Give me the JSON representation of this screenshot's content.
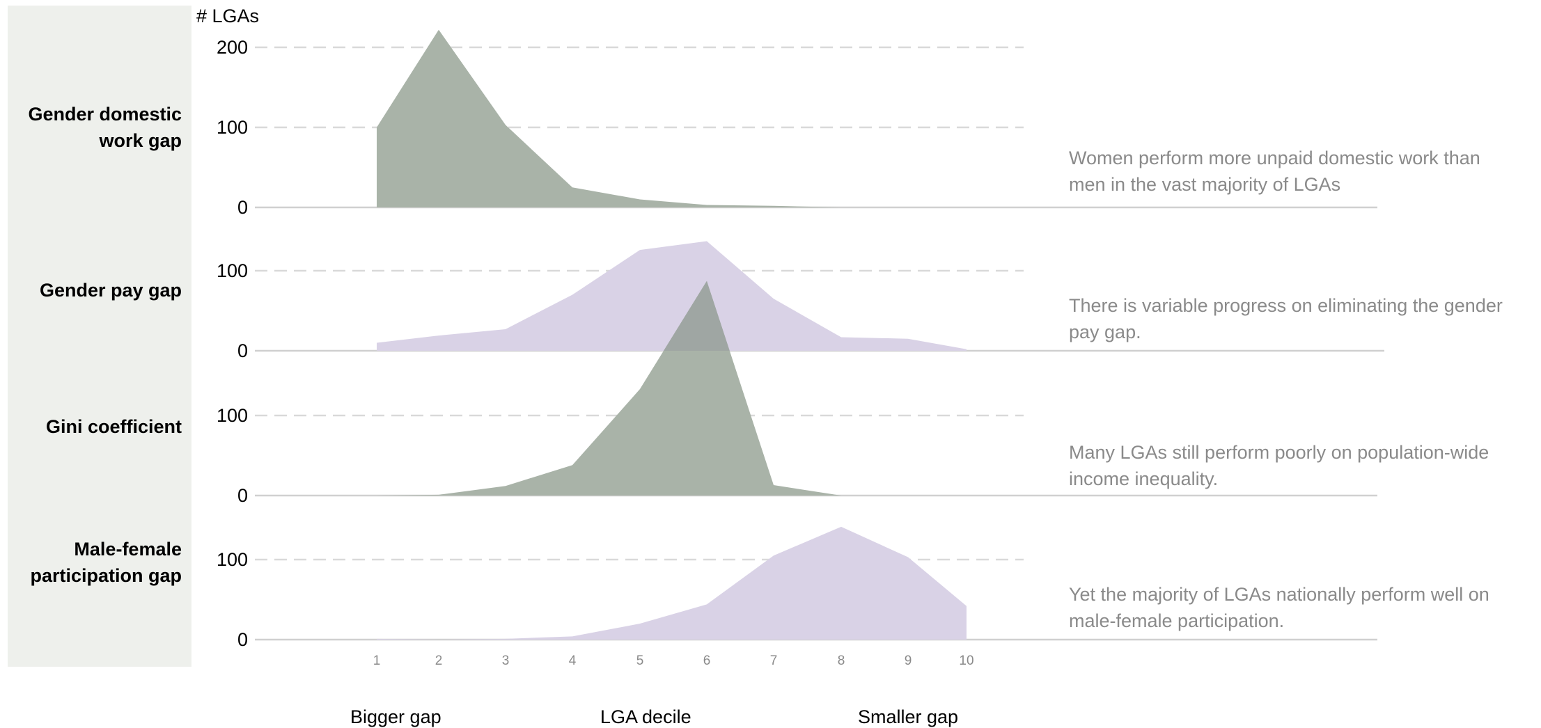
{
  "y_unit_label": "# LGAs",
  "x_words": {
    "left": "Bigger gap",
    "center": "LGA decile",
    "right": "Smaller gap"
  },
  "colors": {
    "green": "#a9b3a8",
    "purple": "#d9d2e6",
    "overlap": "#9fa6a3",
    "gridline": "#d9d9d9",
    "baseline": "#d0d0d0",
    "note_text": "#8a8a8a",
    "panel": "#eef0ec"
  },
  "chart_data": {
    "type": "area",
    "xlabel": "LGA decile",
    "x": [
      1,
      2,
      3,
      4,
      5,
      6,
      7,
      8,
      9,
      10
    ],
    "x_ticks": [
      "1",
      "2",
      "3",
      "4",
      "5",
      "6",
      "7",
      "8",
      "9",
      "10"
    ],
    "panels": [
      {
        "row_label": "Gender domestic work gap",
        "row_label_lines": [
          "Gender domestic",
          "work gap"
        ],
        "note": "Women perform more unpaid domestic work than men in the vast majority of LGAs",
        "note_lines": [
          "Women perform more unpaid domestic work than",
          "men in the vast majority of LGAs"
        ],
        "y_ticks": [
          0,
          100,
          200
        ],
        "color": "green",
        "values": [
          100,
          222,
          103,
          25,
          10,
          3,
          2,
          0,
          0,
          0
        ]
      },
      {
        "row_label": "Gender pay gap",
        "row_label_lines": [
          "Gender pay gap"
        ],
        "note": "There is variable progress on eliminating the gender pay gap.",
        "note_lines": [
          "There is variable progress on eliminating the gender",
          "pay gap."
        ],
        "y_ticks": [
          0,
          100
        ],
        "color": "purple",
        "values": [
          10,
          19,
          27,
          70,
          126,
          137,
          65,
          17,
          15,
          2
        ]
      },
      {
        "row_label": "Gini coefficient",
        "row_label_lines": [
          "Gini coefficient"
        ],
        "note": "Many LGAs still perform poorly on population-wide income inequality.",
        "note_lines": [
          "Many LGAs still perform poorly on population-wide",
          "income inequality."
        ],
        "y_ticks": [
          0,
          100
        ],
        "color": "green",
        "values": [
          0,
          1,
          12,
          38,
          133,
          268,
          13,
          0,
          0,
          0
        ]
      },
      {
        "row_label": "Male-female participation gap",
        "row_label_lines": [
          "Male-female",
          "participation gap"
        ],
        "note": "Yet the majority of LGAs nationally perform well on male-female participation.",
        "note_lines": [
          "Yet the majority of LGAs nationally perform well on",
          "male-female participation."
        ],
        "y_ticks": [
          0,
          100
        ],
        "color": "purple",
        "values": [
          1,
          0,
          1,
          4,
          20,
          44,
          105,
          141,
          103,
          42
        ]
      }
    ]
  }
}
